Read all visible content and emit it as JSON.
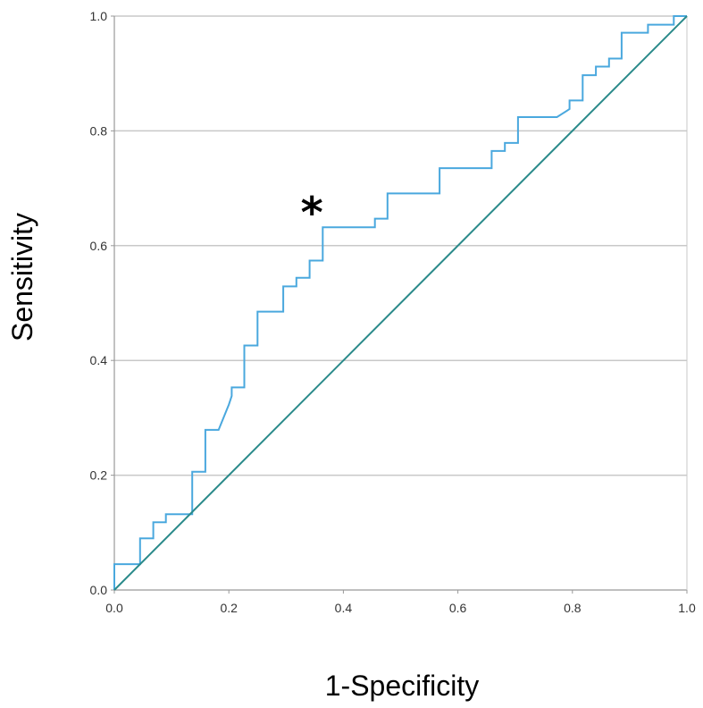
{
  "chart_data": {
    "type": "line",
    "title": "",
    "xlabel": "1-Specificity",
    "ylabel": "Sensitivity",
    "xlim": [
      0,
      1
    ],
    "ylim": [
      0,
      1
    ],
    "xticks": [
      "0.0",
      "0.2",
      "0.4",
      "0.6",
      "0.8",
      "1.0"
    ],
    "yticks": [
      "0.0",
      "0.2",
      "0.4",
      "0.6",
      "0.8",
      "1.0"
    ],
    "grid": "horizontal",
    "annotation": {
      "text": "*",
      "x": 0.345,
      "y": 0.66
    },
    "colors": {
      "roc": "#4aa8de",
      "reference": "#2a8a8a",
      "grid": "#c8c8c8",
      "axis": "#999999"
    },
    "series": [
      {
        "role": "roc",
        "x": [
          0.0,
          0.0,
          0.045,
          0.045,
          0.068,
          0.068,
          0.09,
          0.09,
          0.136,
          0.136,
          0.159,
          0.159,
          0.182,
          0.2,
          0.205,
          0.205,
          0.227,
          0.227,
          0.25,
          0.25,
          0.295,
          0.295,
          0.318,
          0.318,
          0.341,
          0.341,
          0.364,
          0.364,
          0.455,
          0.455,
          0.477,
          0.477,
          0.568,
          0.568,
          0.659,
          0.659,
          0.682,
          0.682,
          0.705,
          0.705,
          0.773,
          0.795,
          0.795,
          0.818,
          0.818,
          0.841,
          0.841,
          0.864,
          0.864,
          0.886,
          0.886,
          0.932,
          0.932,
          0.977,
          0.977,
          1.0
        ],
        "y": [
          0.0,
          0.045,
          0.045,
          0.09,
          0.09,
          0.118,
          0.118,
          0.132,
          0.132,
          0.206,
          0.206,
          0.279,
          0.279,
          0.323,
          0.338,
          0.353,
          0.353,
          0.426,
          0.426,
          0.485,
          0.485,
          0.529,
          0.529,
          0.544,
          0.544,
          0.574,
          0.574,
          0.632,
          0.632,
          0.647,
          0.647,
          0.691,
          0.691,
          0.735,
          0.735,
          0.765,
          0.765,
          0.779,
          0.779,
          0.824,
          0.824,
          0.838,
          0.853,
          0.853,
          0.897,
          0.897,
          0.912,
          0.912,
          0.926,
          0.926,
          0.971,
          0.971,
          0.985,
          0.985,
          1.0,
          1.0
        ]
      },
      {
        "role": "reference",
        "x": [
          0,
          1
        ],
        "y": [
          0,
          1
        ]
      }
    ]
  }
}
